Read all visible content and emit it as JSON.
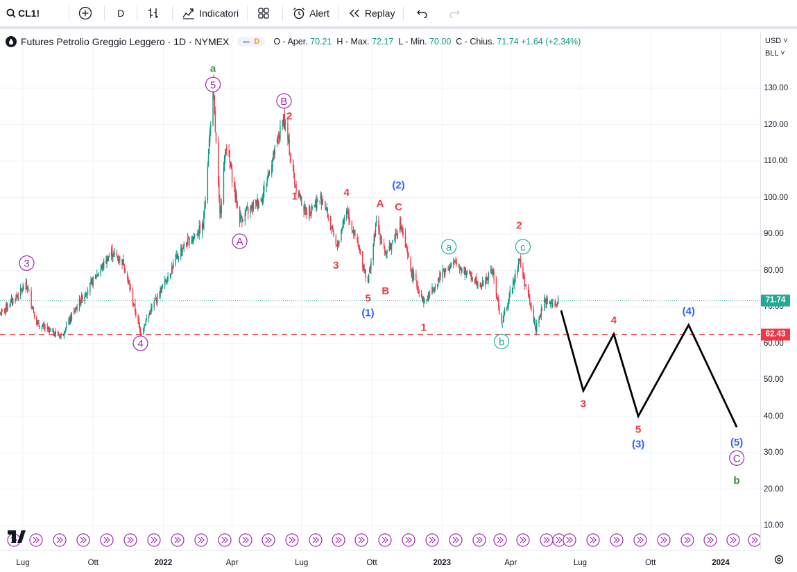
{
  "toolbar": {
    "symbol": "CL1!",
    "interval": "D",
    "indicators_label": "Indicatori",
    "alert_label": "Alert",
    "replay_label": "Replay",
    "icons": [
      "search-icon",
      "add-compare-icon",
      "bar-style-icon",
      "indicators-icon",
      "layouts-icon",
      "alarm-clock-icon",
      "replay-icon",
      "undo-icon",
      "redo-icon"
    ]
  },
  "legend": {
    "title": "Futures Petrolio Greggio Leggero · 1D · NYMEX",
    "badge": "D",
    "o_label": "O - Aper.",
    "o_value": "70.21",
    "h_label": "H - Max.",
    "h_value": "72.17",
    "l_label": "L - Min.",
    "l_value": "70.00",
    "c_label": "C - Chius.",
    "c_value": "71.74",
    "change": "+1.64 (+2.34%)"
  },
  "price_axis": {
    "currency": "USD",
    "unit": "BLL",
    "ticks": [
      "130.00",
      "120.00",
      "110.00",
      "100.00",
      "90.00",
      "80.00",
      "70.00",
      "60.00",
      "50.00",
      "40.00",
      "30.00",
      "20.00",
      "10.00"
    ],
    "last_price_tag": "71.74",
    "level_tag": "62.43"
  },
  "time_axis": {
    "labels": [
      {
        "text": "Lug",
        "bold": false
      },
      {
        "text": "Ott",
        "bold": false
      },
      {
        "text": "2022",
        "bold": true
      },
      {
        "text": "Apr",
        "bold": false
      },
      {
        "text": "Lug",
        "bold": false
      },
      {
        "text": "Ott",
        "bold": false
      },
      {
        "text": "2023",
        "bold": true
      },
      {
        "text": "Apr",
        "bold": false
      },
      {
        "text": "Lug",
        "bold": false
      },
      {
        "text": "Ott",
        "bold": false
      },
      {
        "text": "2024",
        "bold": true
      }
    ]
  },
  "chart_data": {
    "type": "candlestick",
    "ylim": [
      5,
      138
    ],
    "last_price": 71.74,
    "support_level": 62.43,
    "colors": {
      "up": "#089981",
      "down": "#f23645",
      "support": "#f23645",
      "projection": "#000000",
      "purple": "#9c27b0",
      "teal": "#22ab94",
      "blue": "#2962ff",
      "green": "#388e3c",
      "red": "#f23645"
    },
    "price_path": [
      [
        "2021-06-01",
        68
      ],
      [
        "2021-07-06",
        76
      ],
      [
        "2021-07-20",
        65
      ],
      [
        "2021-08-20",
        62
      ],
      [
        "2021-09-15",
        72
      ],
      [
        "2021-10-25",
        85
      ],
      [
        "2021-11-10",
        82
      ],
      [
        "2021-12-02",
        63
      ],
      [
        "2021-12-20",
        71
      ],
      [
        "2022-01-25",
        86
      ],
      [
        "2022-02-22",
        92
      ],
      [
        "2022-03-07",
        130
      ],
      [
        "2022-03-16",
        95
      ],
      [
        "2022-03-24",
        115
      ],
      [
        "2022-04-11",
        94
      ],
      [
        "2022-05-10",
        100
      ],
      [
        "2022-06-08",
        122
      ],
      [
        "2022-06-22",
        104
      ],
      [
        "2022-07-06",
        96
      ],
      [
        "2022-07-29",
        100
      ],
      [
        "2022-08-16",
        86
      ],
      [
        "2022-08-29",
        97
      ],
      [
        "2022-09-26",
        77
      ],
      [
        "2022-10-07",
        93
      ],
      [
        "2022-10-20",
        84
      ],
      [
        "2022-11-07",
        93
      ],
      [
        "2022-11-21",
        80
      ],
      [
        "2022-12-09",
        71
      ],
      [
        "2023-01-03",
        80
      ],
      [
        "2023-01-18",
        82
      ],
      [
        "2023-02-22",
        76
      ],
      [
        "2023-03-08",
        80
      ],
      [
        "2023-03-20",
        65
      ],
      [
        "2023-04-12",
        83
      ],
      [
        "2023-05-04",
        64
      ],
      [
        "2023-05-16",
        72
      ],
      [
        "2023-05-30",
        70
      ],
      [
        "2023-06-02",
        71.74
      ]
    ],
    "projection": [
      [
        "2023-06-06",
        69
      ],
      [
        "2023-07-05",
        47
      ],
      [
        "2023-08-14",
        62.5
      ],
      [
        "2023-09-15",
        40
      ],
      [
        "2023-11-20",
        65
      ],
      [
        "2024-01-22",
        37
      ]
    ],
    "wave_labels": [
      {
        "text": "a",
        "date": "2022-03-07",
        "price": 135.5,
        "color": "green",
        "circle": false
      },
      {
        "text": "5",
        "date": "2022-03-07",
        "price": 131,
        "color": "purple",
        "circle": true
      },
      {
        "text": "B",
        "date": "2022-06-08",
        "price": 126.5,
        "color": "purple",
        "circle": true
      },
      {
        "text": "2",
        "date": "2022-06-15",
        "price": 122.5,
        "color": "red",
        "circle": false
      },
      {
        "text": "3",
        "date": "2021-07-06",
        "price": 82,
        "color": "purple",
        "circle": true
      },
      {
        "text": "A",
        "date": "2022-04-11",
        "price": 88,
        "color": "purple",
        "circle": true
      },
      {
        "text": "1",
        "date": "2022-06-22",
        "price": 100.5,
        "color": "red",
        "circle": false
      },
      {
        "text": "4",
        "date": "2022-08-29",
        "price": 101.5,
        "color": "red",
        "circle": false
      },
      {
        "text": "3",
        "date": "2022-08-15",
        "price": 81.5,
        "color": "red",
        "circle": false
      },
      {
        "text": "A",
        "date": "2022-10-12",
        "price": 98.5,
        "color": "red",
        "circle": false
      },
      {
        "text": "(2)",
        "date": "2022-11-05",
        "price": 103.5,
        "color": "blue",
        "circle": false
      },
      {
        "text": "C",
        "date": "2022-11-05",
        "price": 97.5,
        "color": "red",
        "circle": false
      },
      {
        "text": "B",
        "date": "2022-10-19",
        "price": 74.5,
        "color": "red",
        "circle": false
      },
      {
        "text": "5",
        "date": "2022-09-26",
        "price": 72.5,
        "color": "red",
        "circle": false
      },
      {
        "text": "(1)",
        "date": "2022-09-26",
        "price": 68.5,
        "color": "blue",
        "circle": false
      },
      {
        "text": "1",
        "date": "2022-12-08",
        "price": 64.5,
        "color": "red",
        "circle": false
      },
      {
        "text": "a",
        "date": "2023-01-10",
        "price": 86.5,
        "color": "teal",
        "circle": true
      },
      {
        "text": "2",
        "date": "2023-04-12",
        "price": 92.5,
        "color": "red",
        "circle": false
      },
      {
        "text": "c",
        "date": "2023-04-17",
        "price": 86.5,
        "color": "teal",
        "circle": true
      },
      {
        "text": "4",
        "date": "2021-12-02",
        "price": 60,
        "color": "purple",
        "circle": true
      },
      {
        "text": "b",
        "date": "2023-03-20",
        "price": 60.5,
        "color": "teal",
        "circle": true
      },
      {
        "text": "3",
        "date": "2023-07-05",
        "price": 43.5,
        "color": "red",
        "circle": false
      },
      {
        "text": "4",
        "date": "2023-08-14",
        "price": 66.5,
        "color": "red",
        "circle": false
      },
      {
        "text": "5",
        "date": "2023-09-15",
        "price": 36.5,
        "color": "red",
        "circle": false
      },
      {
        "text": "(3)",
        "date": "2023-09-15",
        "price": 32.5,
        "color": "blue",
        "circle": false
      },
      {
        "text": "(4)",
        "date": "2023-11-20",
        "price": 69,
        "color": "blue",
        "circle": false
      },
      {
        "text": "(5)",
        "date": "2024-01-22",
        "price": 33,
        "color": "blue",
        "circle": false
      },
      {
        "text": "C",
        "date": "2024-01-22",
        "price": 28.5,
        "color": "purple",
        "circle": true
      },
      {
        "text": "b",
        "date": "2024-01-22",
        "price": 22.5,
        "color": "green",
        "circle": false
      }
    ]
  }
}
